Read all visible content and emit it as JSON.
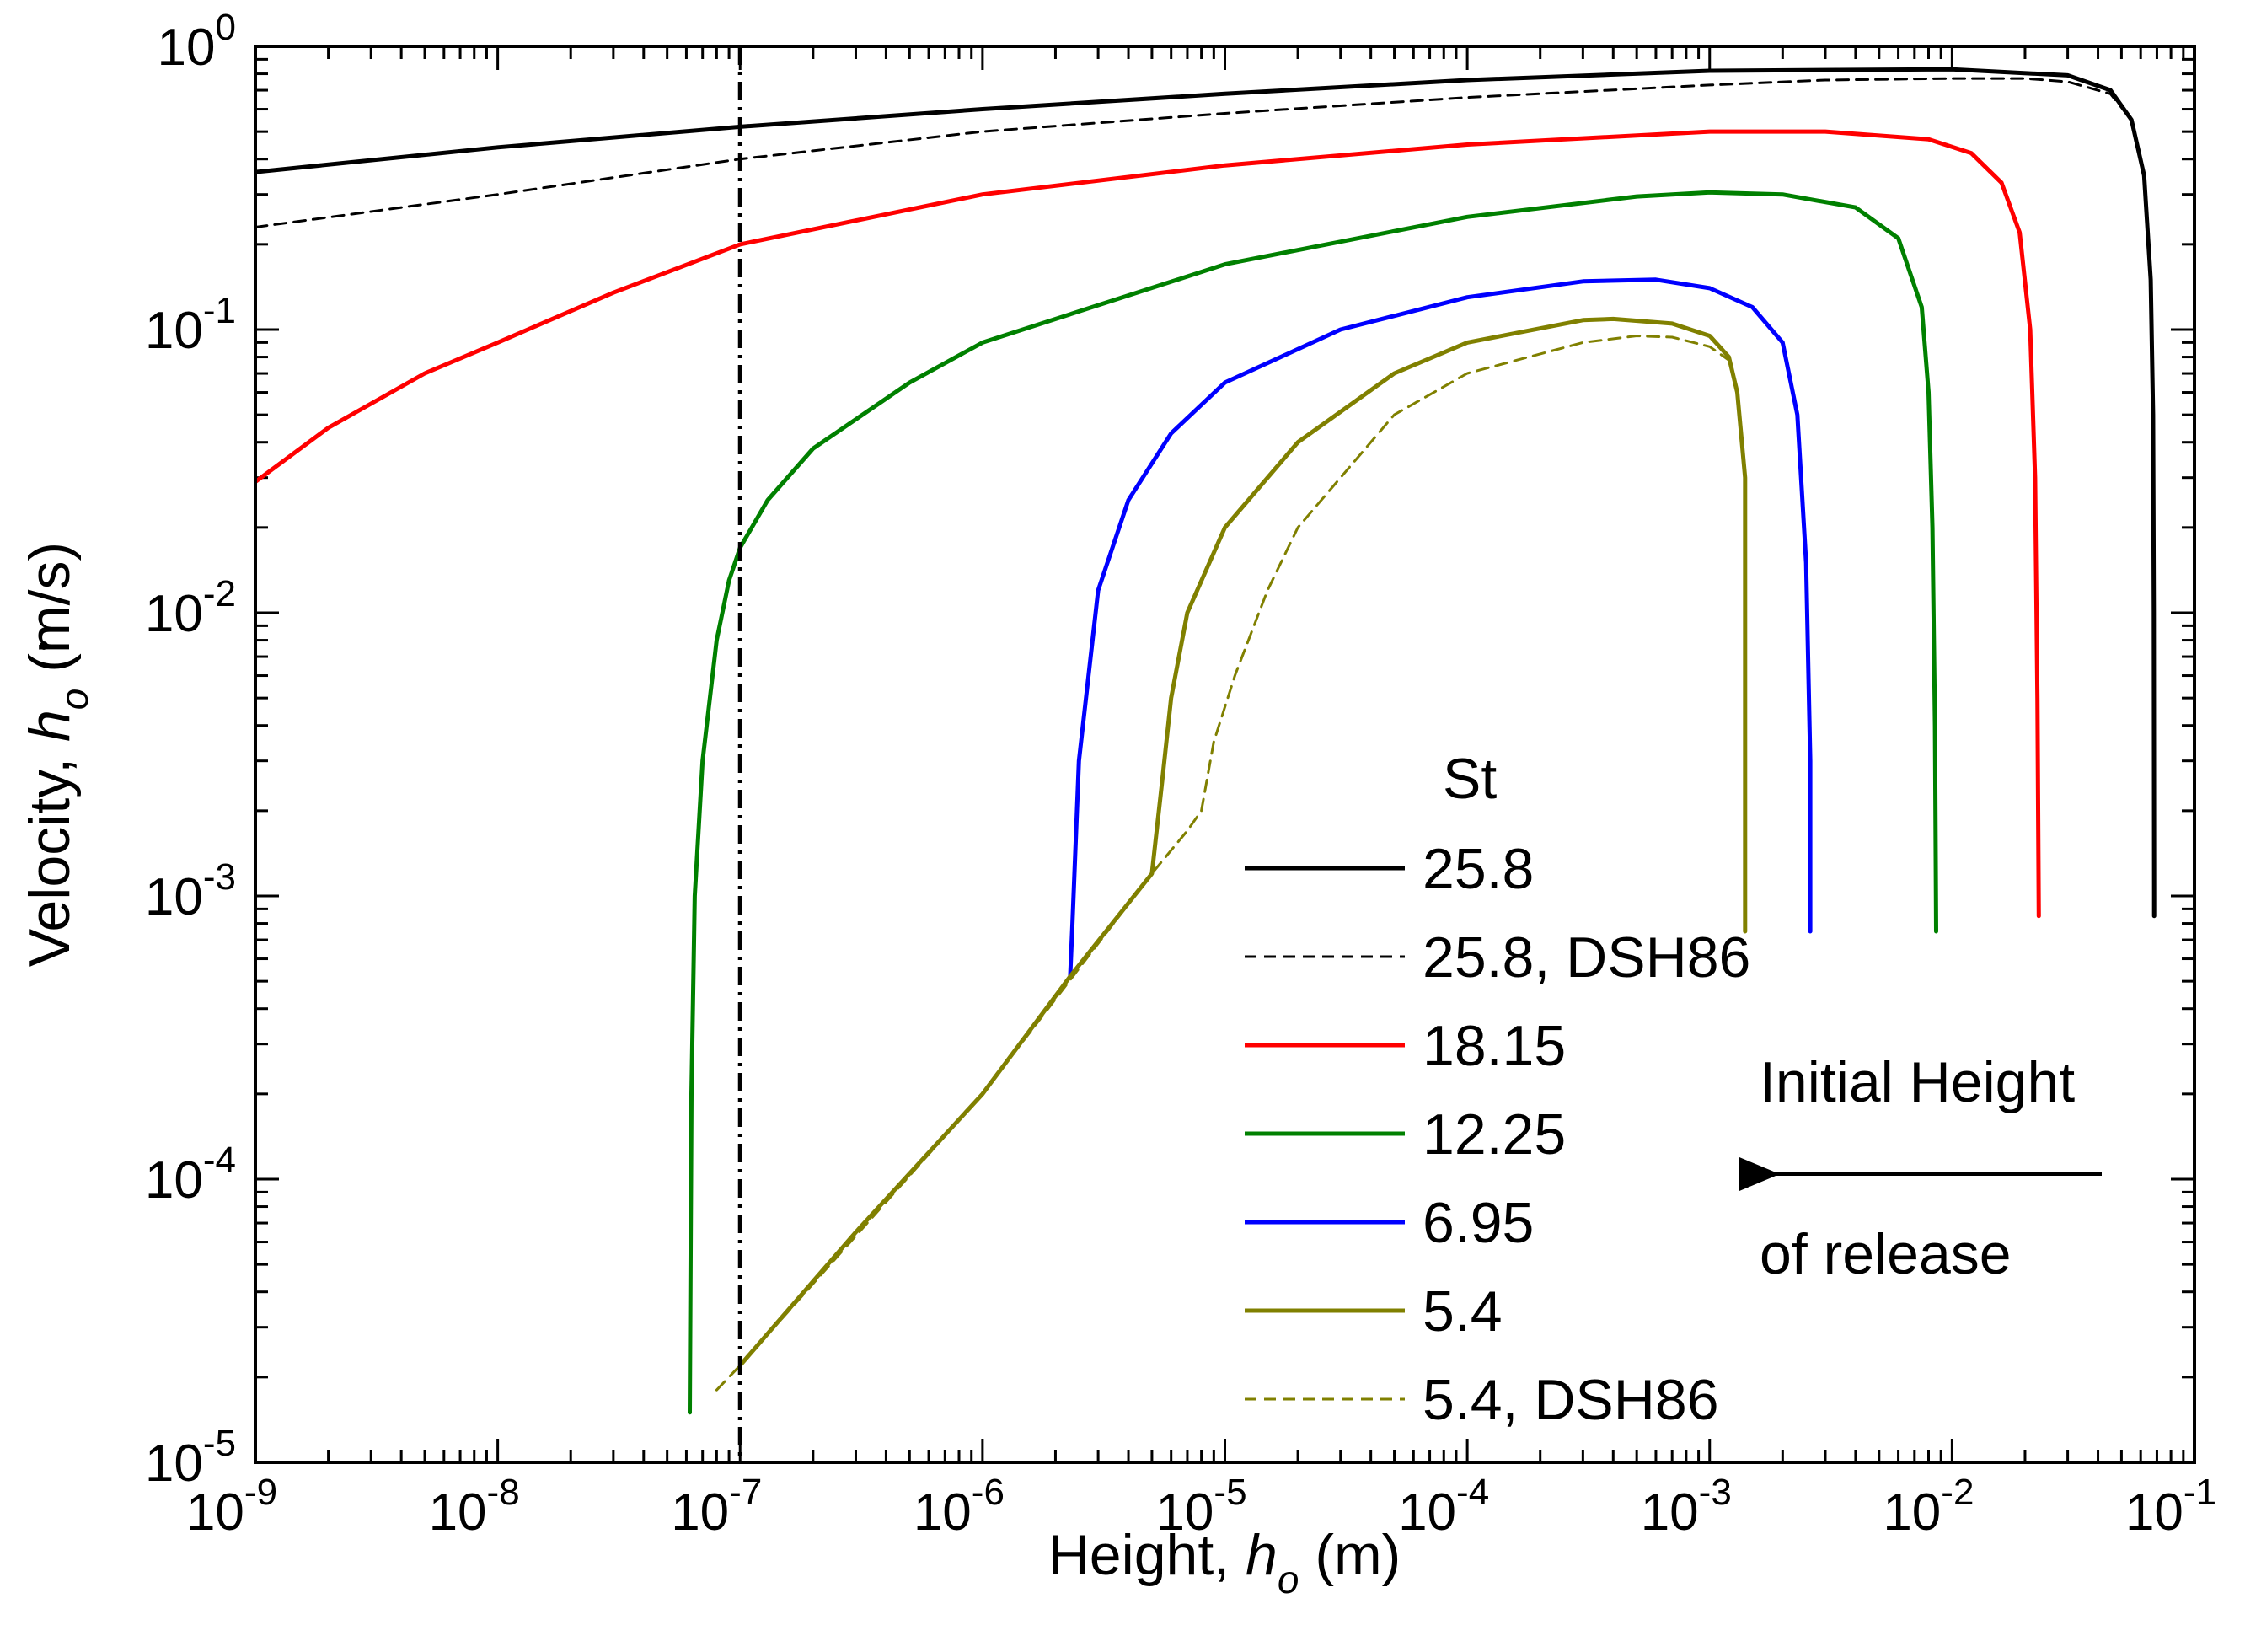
{
  "chart_data": {
    "type": "line",
    "title": "",
    "xlabel": {
      "prefix": "Height, ",
      "symbol": "h",
      "subscript": "o",
      "unit": " (m)"
    },
    "ylabel": {
      "prefix": "Velocity, ",
      "symbol": "h",
      "subscript": "o",
      "unit": " (m/s)"
    },
    "xscale": "log",
    "yscale": "log",
    "xlim": [
      1e-09,
      0.1
    ],
    "ylim": [
      1e-05,
      1
    ],
    "x_ticks": [
      {
        "base": "10",
        "exp": "-9",
        "value": 1e-09
      },
      {
        "base": "10",
        "exp": "-8",
        "value": 1e-08
      },
      {
        "base": "10",
        "exp": "-7",
        "value": 1e-07
      },
      {
        "base": "10",
        "exp": "-6",
        "value": 1e-06
      },
      {
        "base": "10",
        "exp": "-5",
        "value": 1e-05
      },
      {
        "base": "10",
        "exp": "-4",
        "value": 0.0001
      },
      {
        "base": "10",
        "exp": "-3",
        "value": 0.001
      },
      {
        "base": "10",
        "exp": "-2",
        "value": 0.01
      },
      {
        "base": "10",
        "exp": "-1",
        "value": 0.1
      }
    ],
    "y_ticks": [
      {
        "base": "10",
        "exp": "0",
        "value": 1
      },
      {
        "base": "10",
        "exp": "-1",
        "value": 0.1
      },
      {
        "base": "10",
        "exp": "-2",
        "value": 0.01
      },
      {
        "base": "10",
        "exp": "-3",
        "value": 0.001
      },
      {
        "base": "10",
        "exp": "-4",
        "value": 0.0001
      },
      {
        "base": "10",
        "exp": "-5",
        "value": 1e-05
      }
    ],
    "grid": false,
    "legend": {
      "title": "St",
      "placement": "bottom-right"
    },
    "series": [
      {
        "name": "25.8",
        "color": "#000000",
        "dash": "solid",
        "width": "thick",
        "points": [
          [
            1e-09,
            0.36
          ],
          [
            1e-08,
            0.44
          ],
          [
            1e-07,
            0.52
          ],
          [
            1e-06,
            0.6
          ],
          [
            1e-05,
            0.68
          ],
          [
            0.0001,
            0.76
          ],
          [
            0.001,
            0.82
          ],
          [
            0.01,
            0.83
          ],
          [
            0.03,
            0.79
          ],
          [
            0.045,
            0.7
          ],
          [
            0.055,
            0.55
          ],
          [
            0.062,
            0.35
          ],
          [
            0.066,
            0.15
          ],
          [
            0.0675,
            0.05
          ],
          [
            0.068,
            0.01
          ],
          [
            0.0682,
            0.001
          ],
          [
            0.0682,
            0.00085
          ]
        ]
      },
      {
        "name": "25.8, DSH86",
        "color": "#000000",
        "dash": "dashed",
        "width": "thin",
        "points": [
          [
            1e-09,
            0.23
          ],
          [
            1e-08,
            0.3
          ],
          [
            1e-07,
            0.4
          ],
          [
            1e-06,
            0.5
          ],
          [
            1e-05,
            0.58
          ],
          [
            0.0001,
            0.66
          ],
          [
            0.001,
            0.73
          ],
          [
            0.003,
            0.76
          ],
          [
            0.01,
            0.77
          ],
          [
            0.02,
            0.77
          ],
          [
            0.03,
            0.75
          ],
          [
            0.045,
            0.68
          ],
          [
            0.055,
            0.55
          ]
        ]
      },
      {
        "name": "18.15",
        "color": "#ff0000",
        "dash": "solid",
        "width": "thick",
        "points": [
          [
            1e-09,
            0.029
          ],
          [
            2e-09,
            0.045
          ],
          [
            5e-09,
            0.07
          ],
          [
            1e-08,
            0.09
          ],
          [
            3e-08,
            0.135
          ],
          [
            1e-07,
            0.2
          ],
          [
            1e-06,
            0.3
          ],
          [
            1e-05,
            0.38
          ],
          [
            0.0001,
            0.45
          ],
          [
            0.001,
            0.5
          ],
          [
            0.003,
            0.5
          ],
          [
            0.008,
            0.47
          ],
          [
            0.012,
            0.42
          ],
          [
            0.016,
            0.33
          ],
          [
            0.019,
            0.22
          ],
          [
            0.021,
            0.1
          ],
          [
            0.022,
            0.03
          ],
          [
            0.0225,
            0.005
          ],
          [
            0.0228,
            0.00085
          ]
        ]
      },
      {
        "name": "12.25",
        "color": "#008000",
        "dash": "solid",
        "width": "thick",
        "points": [
          [
            6.2e-08,
            1.5e-05
          ],
          [
            6.3e-08,
            0.0002
          ],
          [
            6.5e-08,
            0.001
          ],
          [
            7e-08,
            0.003
          ],
          [
            8e-08,
            0.008
          ],
          [
            9e-08,
            0.013
          ],
          [
            1e-07,
            0.017
          ],
          [
            1.3e-07,
            0.025
          ],
          [
            2e-07,
            0.038
          ],
          [
            5e-07,
            0.065
          ],
          [
            1e-06,
            0.09
          ],
          [
            1e-05,
            0.17
          ],
          [
            0.0001,
            0.25
          ],
          [
            0.0005,
            0.295
          ],
          [
            0.001,
            0.305
          ],
          [
            0.002,
            0.3
          ],
          [
            0.004,
            0.27
          ],
          [
            0.006,
            0.21
          ],
          [
            0.0075,
            0.12
          ],
          [
            0.008,
            0.06
          ],
          [
            0.0083,
            0.02
          ],
          [
            0.0085,
            0.004
          ],
          [
            0.0086,
            0.00075
          ]
        ]
      },
      {
        "name": "6.95",
        "color": "#0000ff",
        "dash": "solid",
        "width": "thick",
        "points": [
          [
            2.3e-06,
            0.00052
          ],
          [
            2.35e-06,
            0.0008
          ],
          [
            2.5e-06,
            0.003
          ],
          [
            3e-06,
            0.012
          ],
          [
            4e-06,
            0.025
          ],
          [
            6e-06,
            0.043
          ],
          [
            1e-05,
            0.065
          ],
          [
            3e-05,
            0.1
          ],
          [
            0.0001,
            0.13
          ],
          [
            0.0003,
            0.148
          ],
          [
            0.0006,
            0.15
          ],
          [
            0.001,
            0.14
          ],
          [
            0.0015,
            0.12
          ],
          [
            0.002,
            0.09
          ],
          [
            0.0023,
            0.05
          ],
          [
            0.0025,
            0.015
          ],
          [
            0.0026,
            0.003
          ],
          [
            0.0026,
            0.00075
          ]
        ]
      },
      {
        "name": "5.4",
        "color": "#808000",
        "dash": "solid",
        "width": "thick",
        "points": [
          [
            1e-07,
            2.2e-05
          ],
          [
            3e-07,
            6.5e-05
          ],
          [
            1e-06,
            0.0002
          ],
          [
            2.3e-06,
            0.00052
          ],
          [
            5e-06,
            0.0012
          ],
          [
            5.5e-06,
            0.0025
          ],
          [
            6e-06,
            0.005
          ],
          [
            7e-06,
            0.01
          ],
          [
            1e-05,
            0.02
          ],
          [
            2e-05,
            0.04
          ],
          [
            5e-05,
            0.07
          ],
          [
            0.0001,
            0.09
          ],
          [
            0.0003,
            0.108
          ],
          [
            0.0004,
            0.109
          ],
          [
            0.0007,
            0.105
          ],
          [
            0.001,
            0.095
          ],
          [
            0.0012,
            0.08
          ],
          [
            0.0013,
            0.06
          ],
          [
            0.0014,
            0.03
          ],
          [
            0.0014,
            0.005
          ],
          [
            0.0014,
            0.00075
          ]
        ]
      },
      {
        "name": "5.4, DSH86",
        "color": "#808000",
        "dash": "dashed",
        "width": "thin",
        "points": [
          [
            8e-08,
            1.8e-05
          ],
          [
            1e-07,
            2.2e-05
          ],
          [
            1e-06,
            0.0002
          ],
          [
            5e-06,
            0.0012
          ],
          [
            7e-06,
            0.0017
          ],
          [
            8e-06,
            0.002
          ],
          [
            9e-06,
            0.0035
          ],
          [
            1.1e-05,
            0.006
          ],
          [
            1.5e-05,
            0.012
          ],
          [
            2e-05,
            0.02
          ],
          [
            5e-05,
            0.05
          ],
          [
            0.0001,
            0.07
          ],
          [
            0.0003,
            0.09
          ],
          [
            0.0005,
            0.095
          ],
          [
            0.0007,
            0.094
          ],
          [
            0.001,
            0.087
          ],
          [
            0.0012,
            0.078
          ]
        ]
      }
    ],
    "reference_line": {
      "x": 1e-07,
      "style": "dash-dot",
      "color": "#000000"
    },
    "annotation": {
      "line1": "Initial Height",
      "line2": "of release",
      "arrow": "left"
    }
  }
}
